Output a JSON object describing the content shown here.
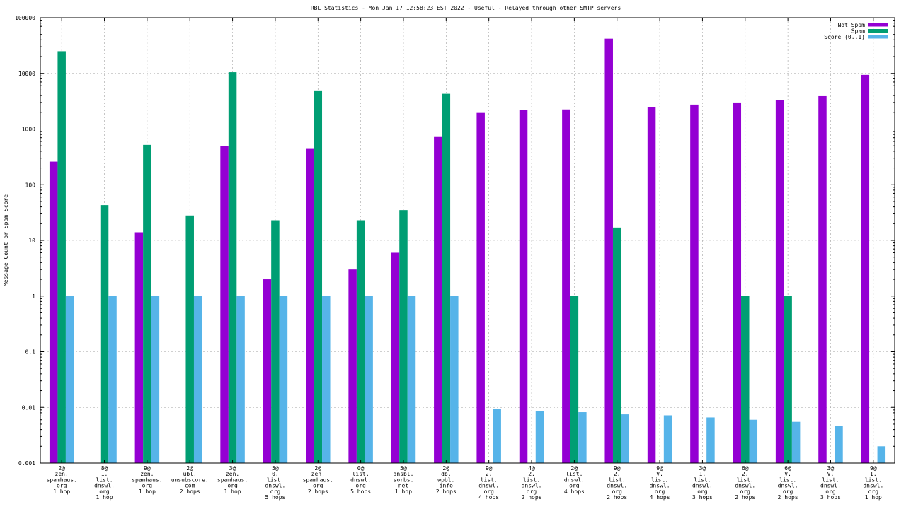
{
  "chart_data": {
    "type": "bar",
    "title": "RBL Statistics - Mon Jan 17 12:58:23 EST 2022 - Useful - Relayed through other SMTP servers",
    "xlabel": "",
    "ylabel": "Message Count or Spam Score",
    "yscale": "log",
    "ylim": [
      0.001,
      100000
    ],
    "yticks": [
      "0.001",
      "0.01",
      "0.1",
      "1",
      "10",
      "100",
      "1000",
      "10000",
      "100000"
    ],
    "grid": true,
    "legend_position": "top-right",
    "categories": [
      [
        "2@",
        "zen.",
        "spamhaus.",
        "org",
        "1 hop"
      ],
      [
        "8@",
        "1.",
        "list.",
        "dnswl.",
        "org",
        "1 hop"
      ],
      [
        "9@",
        "zen.",
        "spamhaus.",
        "org",
        "1 hop"
      ],
      [
        "2@",
        "ubl.",
        "unsubscore.",
        "com",
        "2 hops"
      ],
      [
        "3@",
        "zen.",
        "spamhaus.",
        "org",
        "1 hop"
      ],
      [
        "5@",
        "0.",
        "list.",
        "dnswl.",
        "org",
        "5 hops"
      ],
      [
        "2@",
        "zen.",
        "spamhaus.",
        "org",
        "2 hops"
      ],
      [
        "0@",
        "list.",
        "dnswl.",
        "org",
        "5 hops"
      ],
      [
        "5@",
        "dnsbl.",
        "sorbs.",
        "net",
        "1 hop"
      ],
      [
        "2@",
        "db.",
        "wpbl.",
        "info",
        "2 hops"
      ],
      [
        "9@",
        "2.",
        "list.",
        "dnswl.",
        "org",
        "4 hops"
      ],
      [
        "4@",
        "2.",
        "list.",
        "dnswl.",
        "org",
        "2 hops"
      ],
      [
        "2@",
        "list.",
        "dnswl.",
        "org",
        "4 hops"
      ],
      [
        "9@",
        "2.",
        "list.",
        "dnswl.",
        "org",
        "2 hops"
      ],
      [
        "9@",
        "V.",
        "list.",
        "dnswl.",
        "org",
        "4 hops"
      ],
      [
        "3@",
        "1.",
        "list.",
        "dnswl.",
        "org",
        "3 hops"
      ],
      [
        "6@",
        "2.",
        "list.",
        "dnswl.",
        "org",
        "2 hops"
      ],
      [
        "6@",
        "V.",
        "list.",
        "dnswl.",
        "org",
        "2 hops"
      ],
      [
        "3@",
        "V.",
        "list.",
        "dnswl.",
        "org",
        "3 hops"
      ],
      [
        "9@",
        "1.",
        "list.",
        "dnswl.",
        "org",
        "1 hop"
      ]
    ],
    "series": [
      {
        "name": "Not Spam",
        "color": "#9400d3",
        "values": [
          260,
          null,
          14,
          null,
          490,
          2,
          440,
          3,
          6,
          720,
          1950,
          2200,
          2250,
          42000,
          2500,
          2750,
          3000,
          3300,
          3900,
          9400
        ]
      },
      {
        "name": "Spam",
        "color": "#009e73",
        "values": [
          25000,
          43,
          520,
          28,
          10500,
          23,
          4800,
          23,
          35,
          4300,
          null,
          null,
          1,
          17,
          null,
          null,
          1,
          1,
          null,
          null
        ]
      },
      {
        "name": "Score (0..1)",
        "color": "#56b4e9",
        "values": [
          1,
          1,
          1,
          1,
          1,
          1,
          1,
          1,
          1,
          1,
          0.0095,
          0.0085,
          0.0082,
          0.0075,
          0.0072,
          0.0066,
          0.006,
          0.0055,
          0.0046,
          0.002
        ]
      }
    ]
  }
}
